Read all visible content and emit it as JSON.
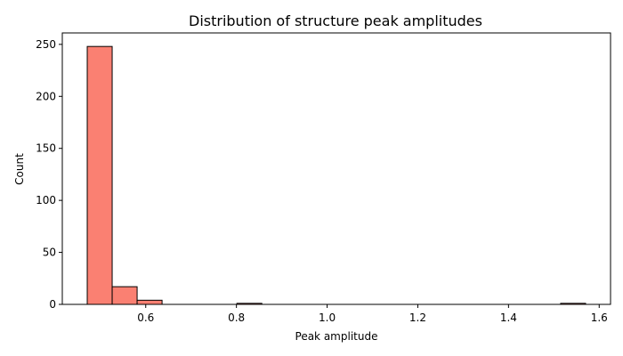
{
  "chart_data": {
    "type": "bar",
    "subtype": "histogram",
    "title": "Distribution of structure peak amplitudes",
    "xlabel": "Peak amplitude",
    "ylabel": "Count",
    "xlim": [
      0.416,
      1.625
    ],
    "ylim": [
      0,
      261
    ],
    "xticks": [
      0.6,
      0.8,
      1.0,
      1.2,
      1.4,
      1.6
    ],
    "xtick_labels": [
      "0.6",
      "0.8",
      "1.0",
      "1.2",
      "1.4",
      "1.6"
    ],
    "yticks": [
      0,
      50,
      100,
      150,
      200,
      250
    ],
    "ytick_labels": [
      "0",
      "50",
      "100",
      "150",
      "200",
      "250"
    ],
    "grid": false,
    "bar_color": "#fa8072",
    "edge_color": "#000000",
    "bins": [
      {
        "x0": 0.471,
        "x1": 0.526,
        "count": 248
      },
      {
        "x0": 0.526,
        "x1": 0.581,
        "count": 17
      },
      {
        "x0": 0.581,
        "x1": 0.636,
        "count": 4
      },
      {
        "x0": 0.801,
        "x1": 0.856,
        "count": 1
      },
      {
        "x0": 1.515,
        "x1": 1.57,
        "count": 1
      }
    ]
  }
}
